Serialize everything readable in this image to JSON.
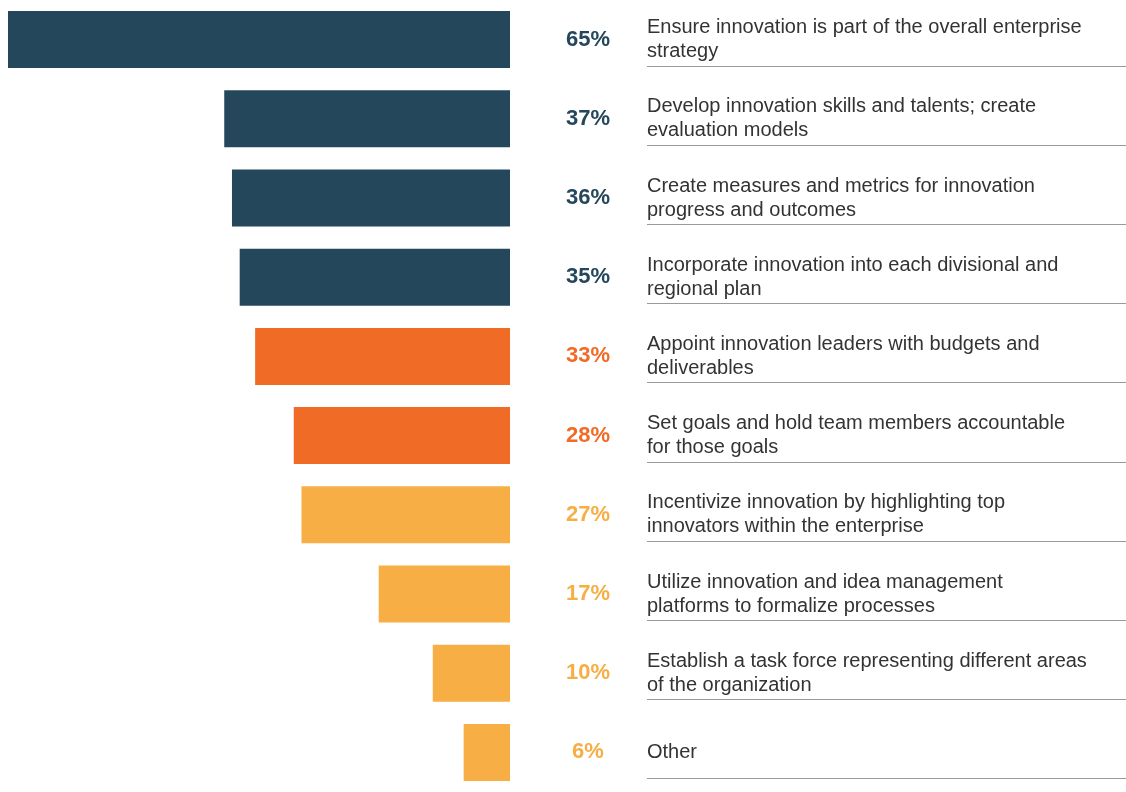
{
  "chart_data": {
    "type": "bar",
    "orientation": "horizontal",
    "categories": [
      "Ensure innovation is part of the overall enterprise strategy",
      "Develop innovation skills and talents; create evaluation models",
      "Create measures and metrics for innovation progress and outcomes",
      "Incorporate innovation into each divisional and regional plan",
      "Appoint innovation leaders with budgets and deliverables",
      "Set goals and hold team members accountable for those goals",
      "Incentivize innovation by highlighting top innovators within the enterprise",
      "Utilize innovation and idea management platforms to formalize processes",
      "Establish a task force representing different areas of the organization",
      "Other"
    ],
    "values": [
      65,
      37,
      36,
      35,
      33,
      28,
      27,
      17,
      10,
      6
    ],
    "colors": [
      "#24475c",
      "#24475c",
      "#24475c",
      "#24475c",
      "#f06b25",
      "#f06b25",
      "#f6ae45",
      "#f6ae45",
      "#f6ae45",
      "#f6ae45"
    ],
    "value_labels": [
      "65%",
      "37%",
      "36%",
      "35%",
      "33%",
      "28%",
      "27%",
      "17%",
      "10%",
      "6%"
    ],
    "xlim": [
      65,
      0
    ]
  }
}
